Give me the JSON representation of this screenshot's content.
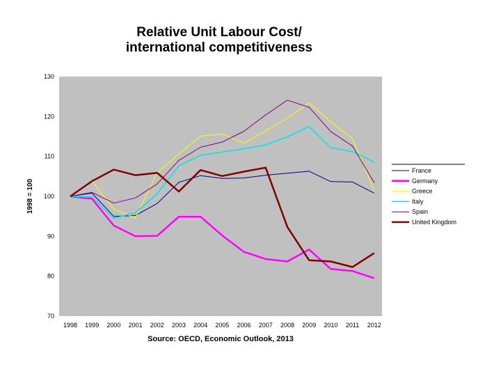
{
  "chart_data": {
    "type": "line",
    "title_line1": "Relative Unit Labour Cost/",
    "title_line2": "international competitiveness",
    "ylabel": "1998 = 100",
    "xlabel": "Source: OECD, Economic Outlook, 2013",
    "ylim": [
      70,
      130
    ],
    "yticks": [
      70,
      80,
      90,
      100,
      110,
      120,
      130
    ],
    "categories": [
      "1998",
      "1999",
      "2000",
      "2001",
      "2002",
      "2003",
      "2004",
      "2005",
      "2006",
      "2007",
      "2008",
      "2009",
      "2010",
      "2011",
      "2012"
    ],
    "series": [
      {
        "name": "France",
        "color": "#000080",
        "width": 1,
        "values": [
          100,
          100.8,
          95,
          95.2,
          98.2,
          103.5,
          105.2,
          104.5,
          104.6,
          105.3,
          105.8,
          106.3,
          103.7,
          103.6,
          100.8
        ]
      },
      {
        "name": "Germany",
        "color": "#ff00ff",
        "width": 2.5,
        "values": [
          100,
          99.4,
          92.7,
          90,
          90.1,
          94.9,
          94.9,
          90.2,
          86.1,
          84.3,
          83.7,
          86.7,
          81.8,
          81.3,
          79.5
        ]
      },
      {
        "name": "Greece",
        "color": "#ffff00",
        "width": 1,
        "values": [
          100,
          103.8,
          96.8,
          94.6,
          105.9,
          110.6,
          115.1,
          115.6,
          113.3,
          116.4,
          119.6,
          123.4,
          118.7,
          114.4,
          101.5
        ]
      },
      {
        "name": "Italy",
        "color": "#00e5e5",
        "width": 1.5,
        "values": [
          100,
          99.8,
          94.5,
          95.9,
          100.6,
          107.7,
          110.3,
          111.1,
          111.9,
          112.9,
          114.9,
          117.5,
          112.2,
          111.2,
          108.6
        ]
      },
      {
        "name": "Spain",
        "color": "#800080",
        "width": 1,
        "values": [
          100,
          101,
          98.3,
          99.6,
          103.1,
          109,
          112.3,
          113.6,
          116.3,
          120.4,
          124.1,
          122.3,
          116.2,
          112.6,
          103.4
        ]
      },
      {
        "name": "United Kingdom",
        "color": "#800000",
        "width": 2.5,
        "values": [
          100,
          103.8,
          106.7,
          105.3,
          105.9,
          101.2,
          106.6,
          105.1,
          106.2,
          107.2,
          92.3,
          84,
          83.7,
          82.3,
          85.8
        ]
      }
    ]
  }
}
